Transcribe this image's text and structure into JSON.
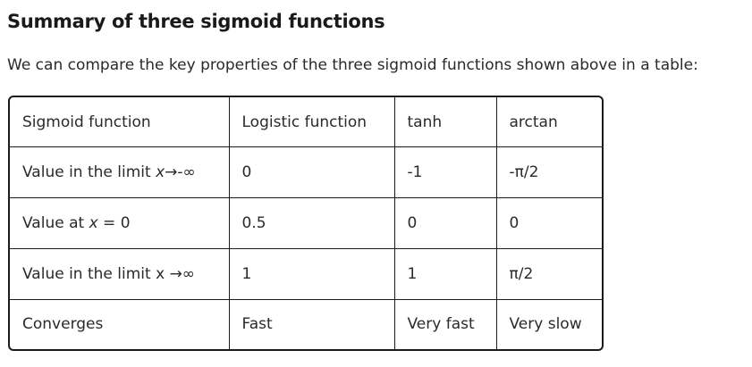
{
  "heading": "Summary of three sigmoid functions",
  "intro": "We can compare the key properties of the three sigmoid functions shown above in a table:",
  "table": {
    "header": [
      "Sigmoid function",
      "Logistic function",
      "tanh",
      "arctan"
    ],
    "rows": [
      {
        "label_prefix": "Value in the limit ",
        "label_var": "x",
        "label_suffix": "→-∞",
        "values": [
          "0",
          "-1",
          "-π/2"
        ]
      },
      {
        "label_prefix": "Value at ",
        "label_var": "x",
        "label_suffix": " = 0",
        "values": [
          "0.5",
          "0",
          "0"
        ]
      },
      {
        "label_prefix": "Value in the limit x ",
        "label_var": "",
        "label_suffix": "→∞",
        "values": [
          "1",
          "1",
          "π/2"
        ]
      },
      {
        "label_prefix": "Converges",
        "label_var": "",
        "label_suffix": "",
        "values": [
          "Fast",
          "Very fast",
          "Very slow"
        ]
      }
    ]
  }
}
